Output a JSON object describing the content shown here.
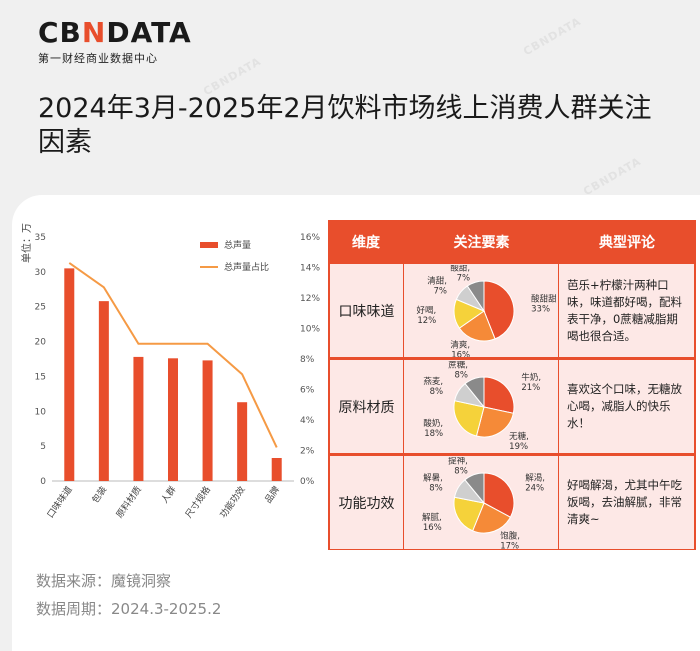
{
  "brand": {
    "logo_left": "CB",
    "logo_accent": "N",
    "logo_right": "DATA",
    "subtitle": "第一财经商业数据中心",
    "watermark": "CBNDATA"
  },
  "title": "2024年3月-2025年2月饮料市场线上消费人群关注因素",
  "colors": {
    "bar": "#e84e2c",
    "line": "#f59a45",
    "accent": "#e84e2c",
    "pie": [
      "#e84e2c",
      "#f58a38",
      "#f5d23a",
      "#cfcfcf",
      "#8a8a8a"
    ]
  },
  "chart_data": {
    "type": "bar",
    "ylabel_left": "单位：万",
    "categories": [
      "口味味道",
      "包装",
      "原料材质",
      "人群",
      "尺寸规格",
      "功能功效",
      "品牌"
    ],
    "series": [
      {
        "name": "总声量",
        "type": "bar",
        "axis": "left",
        "values": [
          30.5,
          25.8,
          17.8,
          17.6,
          17.3,
          11.3,
          3.3
        ]
      },
      {
        "name": "总声量占比",
        "type": "line",
        "axis": "right",
        "values": [
          14.3,
          12.7,
          9.0,
          9.0,
          9.0,
          7.0,
          2.2
        ]
      }
    ],
    "ylim_left": [
      0,
      35
    ],
    "yticks_left": [
      "0",
      "5",
      "10",
      "15",
      "20",
      "25",
      "30",
      "35"
    ],
    "ylim_right": [
      0,
      16
    ],
    "yticks_right": [
      "0%",
      "2%",
      "4%",
      "6%",
      "8%",
      "10%",
      "12%",
      "14%",
      "16%"
    ],
    "legend_position": "top-right",
    "grid": false
  },
  "table": {
    "headers": [
      "维度",
      "关注要素",
      "典型评论"
    ],
    "rows": [
      {
        "dimension": "口味味道",
        "pie": [
          {
            "label": "酸甜甜",
            "pct": "33%",
            "value": 33
          },
          {
            "label": "清爽",
            "pct": "16%",
            "value": 16
          },
          {
            "label": "好喝",
            "pct": "12%",
            "value": 12
          },
          {
            "label": "清甜",
            "pct": "7%",
            "value": 7
          },
          {
            "label": "酸甜",
            "pct": "7%",
            "value": 7
          }
        ],
        "comment": "芭乐+柠檬汁两种口味，味道都好喝，配料表干净，0蔗糖减脂期喝也很合适。"
      },
      {
        "dimension": "原料材质",
        "pie": [
          {
            "label": "牛奶",
            "pct": "21%",
            "value": 21
          },
          {
            "label": "无糖",
            "pct": "19%",
            "value": 19
          },
          {
            "label": "酸奶",
            "pct": "18%",
            "value": 18
          },
          {
            "label": "燕麦",
            "pct": "8%",
            "value": 8
          },
          {
            "label": "蔗糖",
            "pct": "8%",
            "value": 8
          }
        ],
        "comment": "喜欢这个口味，无糖放心喝，减脂人的快乐水！"
      },
      {
        "dimension": "功能功效",
        "pie": [
          {
            "label": "解渴",
            "pct": "24%",
            "value": 24
          },
          {
            "label": "饱腹",
            "pct": "17%",
            "value": 17
          },
          {
            "label": "解腻",
            "pct": "16%",
            "value": 16
          },
          {
            "label": "解暑",
            "pct": "8%",
            "value": 8
          },
          {
            "label": "提神",
            "pct": "8%",
            "value": 8
          }
        ],
        "comment": "好喝解渴，尤其中午吃饭喝，去油解腻，非常清爽~"
      }
    ]
  },
  "footer": {
    "source_label": "数据来源：",
    "source_value": "魔镜洞察",
    "period_label": "数据周期：",
    "period_value": "2024.3-2025.2"
  }
}
